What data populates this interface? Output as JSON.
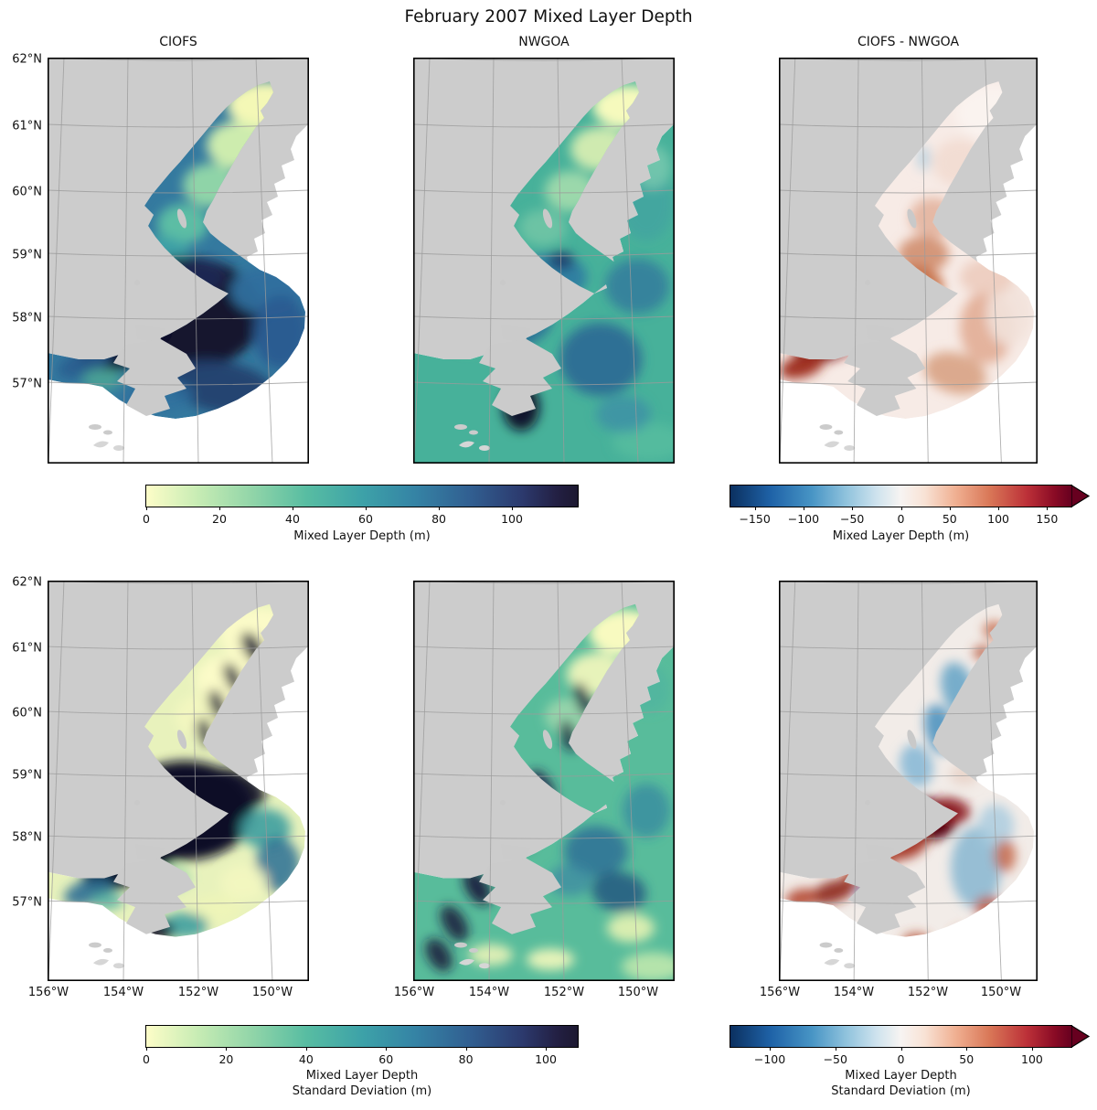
{
  "figure": {
    "title": "February 2007 Mixed Layer Depth"
  },
  "panel_titles": {
    "left": "CIOFS",
    "middle": "NWGOA",
    "right": "CIOFS - NWGOA"
  },
  "axes": {
    "lat_ticks": [
      "62°N",
      "61°N",
      "60°N",
      "59°N",
      "58°N",
      "57°N"
    ],
    "lon_ticks": [
      "156°W",
      "154°W",
      "152°W",
      "150°W"
    ]
  },
  "colorbars": [
    {
      "id": "mld",
      "label": "Mixed Layer Depth (m)",
      "tick_labels": [
        "0",
        "20",
        "40",
        "60",
        "80",
        "100"
      ],
      "tick_values": [
        0,
        20,
        40,
        60,
        80,
        100
      ],
      "vmin": 0,
      "vmax": 118,
      "colormap": "sequential yellow-green-teal-dark-navy (cmocean deep)",
      "extend": "neither"
    },
    {
      "id": "mld-diff",
      "label": "Mixed Layer Depth (m)",
      "tick_labels": [
        "−150",
        "−100",
        "−50",
        "0",
        "50",
        "100",
        "150"
      ],
      "tick_values": [
        -150,
        -100,
        -50,
        0,
        50,
        100,
        150
      ],
      "vmin": -175,
      "vmax": 175,
      "colormap": "diverging blue-white-red (RdBu_r)",
      "extend": "max"
    },
    {
      "id": "mld-std",
      "label_lines": [
        "Mixed Layer Depth",
        "Standard Deviation (m)"
      ],
      "tick_labels": [
        "0",
        "20",
        "40",
        "60",
        "80",
        "100"
      ],
      "tick_values": [
        0,
        20,
        40,
        60,
        80,
        100
      ],
      "vmin": 0,
      "vmax": 108,
      "colormap": "sequential yellow-green-teal-dark-navy (cmocean deep)",
      "extend": "neither"
    },
    {
      "id": "mld-std-diff",
      "label_lines": [
        "Mixed Layer Depth",
        "Standard Deviation (m)"
      ],
      "tick_labels": [
        "−100",
        "−50",
        "0",
        "50",
        "100"
      ],
      "tick_values": [
        -100,
        -50,
        0,
        50,
        100
      ],
      "vmin": -130,
      "vmax": 130,
      "colormap": "diverging blue-white-red (RdBu_r)",
      "extend": "max"
    }
  ],
  "colors": {
    "land": "#cccccc",
    "ocean_no_data": "#ffffff",
    "graticule": "#9b9b9b",
    "seq_min": "#fdfdc8",
    "seq_max": "#1c1830",
    "div_min": "#053061",
    "div_mid": "#f7f7f7",
    "div_max": "#67001f"
  },
  "chart_data": {
    "type": "heatmap",
    "title": "February 2007 Mixed Layer Depth",
    "layout": "2 rows x 3 columns of geographic map panels (Cook Inlet / northwest Gulf of Alaska); gray = land, white = ocean outside model domain",
    "map_extent": {
      "lon_deg_w": [
        157,
        148.5
      ],
      "lat_deg_n": [
        55.8,
        62.0
      ]
    },
    "graticule": {
      "lon_lines_deg_w": [
        156,
        154,
        152,
        150
      ],
      "lat_lines_deg_n": [
        62,
        61,
        60,
        59,
        58,
        57
      ]
    },
    "panels": [
      {
        "row": 1,
        "col": 1,
        "title": "CIOFS",
        "variable": "Mixed Layer Depth (m)",
        "colorbar": "mld",
        "summary": "Shallow MLD 0-20 m (pale yellow) in upper Cook Inlet, 20-60 m mid-inlet, very deep >100 m (near-black) in the southwest basin and Shelikof Strait; fan-shaped CIOFS domain boundary with white (no data) to the southeast."
      },
      {
        "row": 1,
        "col": 2,
        "title": "NWGOA",
        "variable": "Mixed Layer Depth (m)",
        "colorbar": "mld",
        "summary": "MLD 30-60 m (green-teal) over most of the Gulf of Alaska shelf, 0-20 m in upper Cook Inlet, deeper 80-115 m patches south of Kodiak Island and in Shelikof Strait."
      },
      {
        "row": 1,
        "col": 3,
        "title": "CIOFS - NWGOA",
        "variable": "MLD difference (m)",
        "colorbar": "mld-diff",
        "summary": "Mostly small positive differences 0-50 m (pale red); strong positive band exceeding 150 m (dark maroon) in Shelikof Strait southwest of Kodiak; a few small negative (light blue) specks near channels and islands."
      },
      {
        "row": 2,
        "col": 1,
        "title": null,
        "variable": "MLD standard deviation (m)",
        "colorbar": "mld-std",
        "summary": "CIOFS std: near 0-10 m (pale yellow) in upper inlet with thin dark filaments, >100 m (black) in the central basin northeast of Kodiak and along Shelikof Strait, patchy 20-80 m across the outer fan."
      },
      {
        "row": 2,
        "col": 2,
        "title": null,
        "variable": "MLD standard deviation (m)",
        "colorbar": "mld-std",
        "summary": "NWGOA std: filamentary 20-50 m field with dark 80-108 m streaks along Shelikof Strait and shelf eddies; low 0-15 m in the southeast open gulf and upper inlet."
      },
      {
        "row": 2,
        "col": 3,
        "title": null,
        "variable": "MLD standard deviation difference (m)",
        "colorbar": "mld-std-diff",
        "summary": "Std difference: strong positive (dark red, ~100 m) in the central basin and along Shelikof Strait, negative (blue, -20 to -60 m) along the mid-inlet channel and the eastern part of the fan domain."
      }
    ]
  }
}
